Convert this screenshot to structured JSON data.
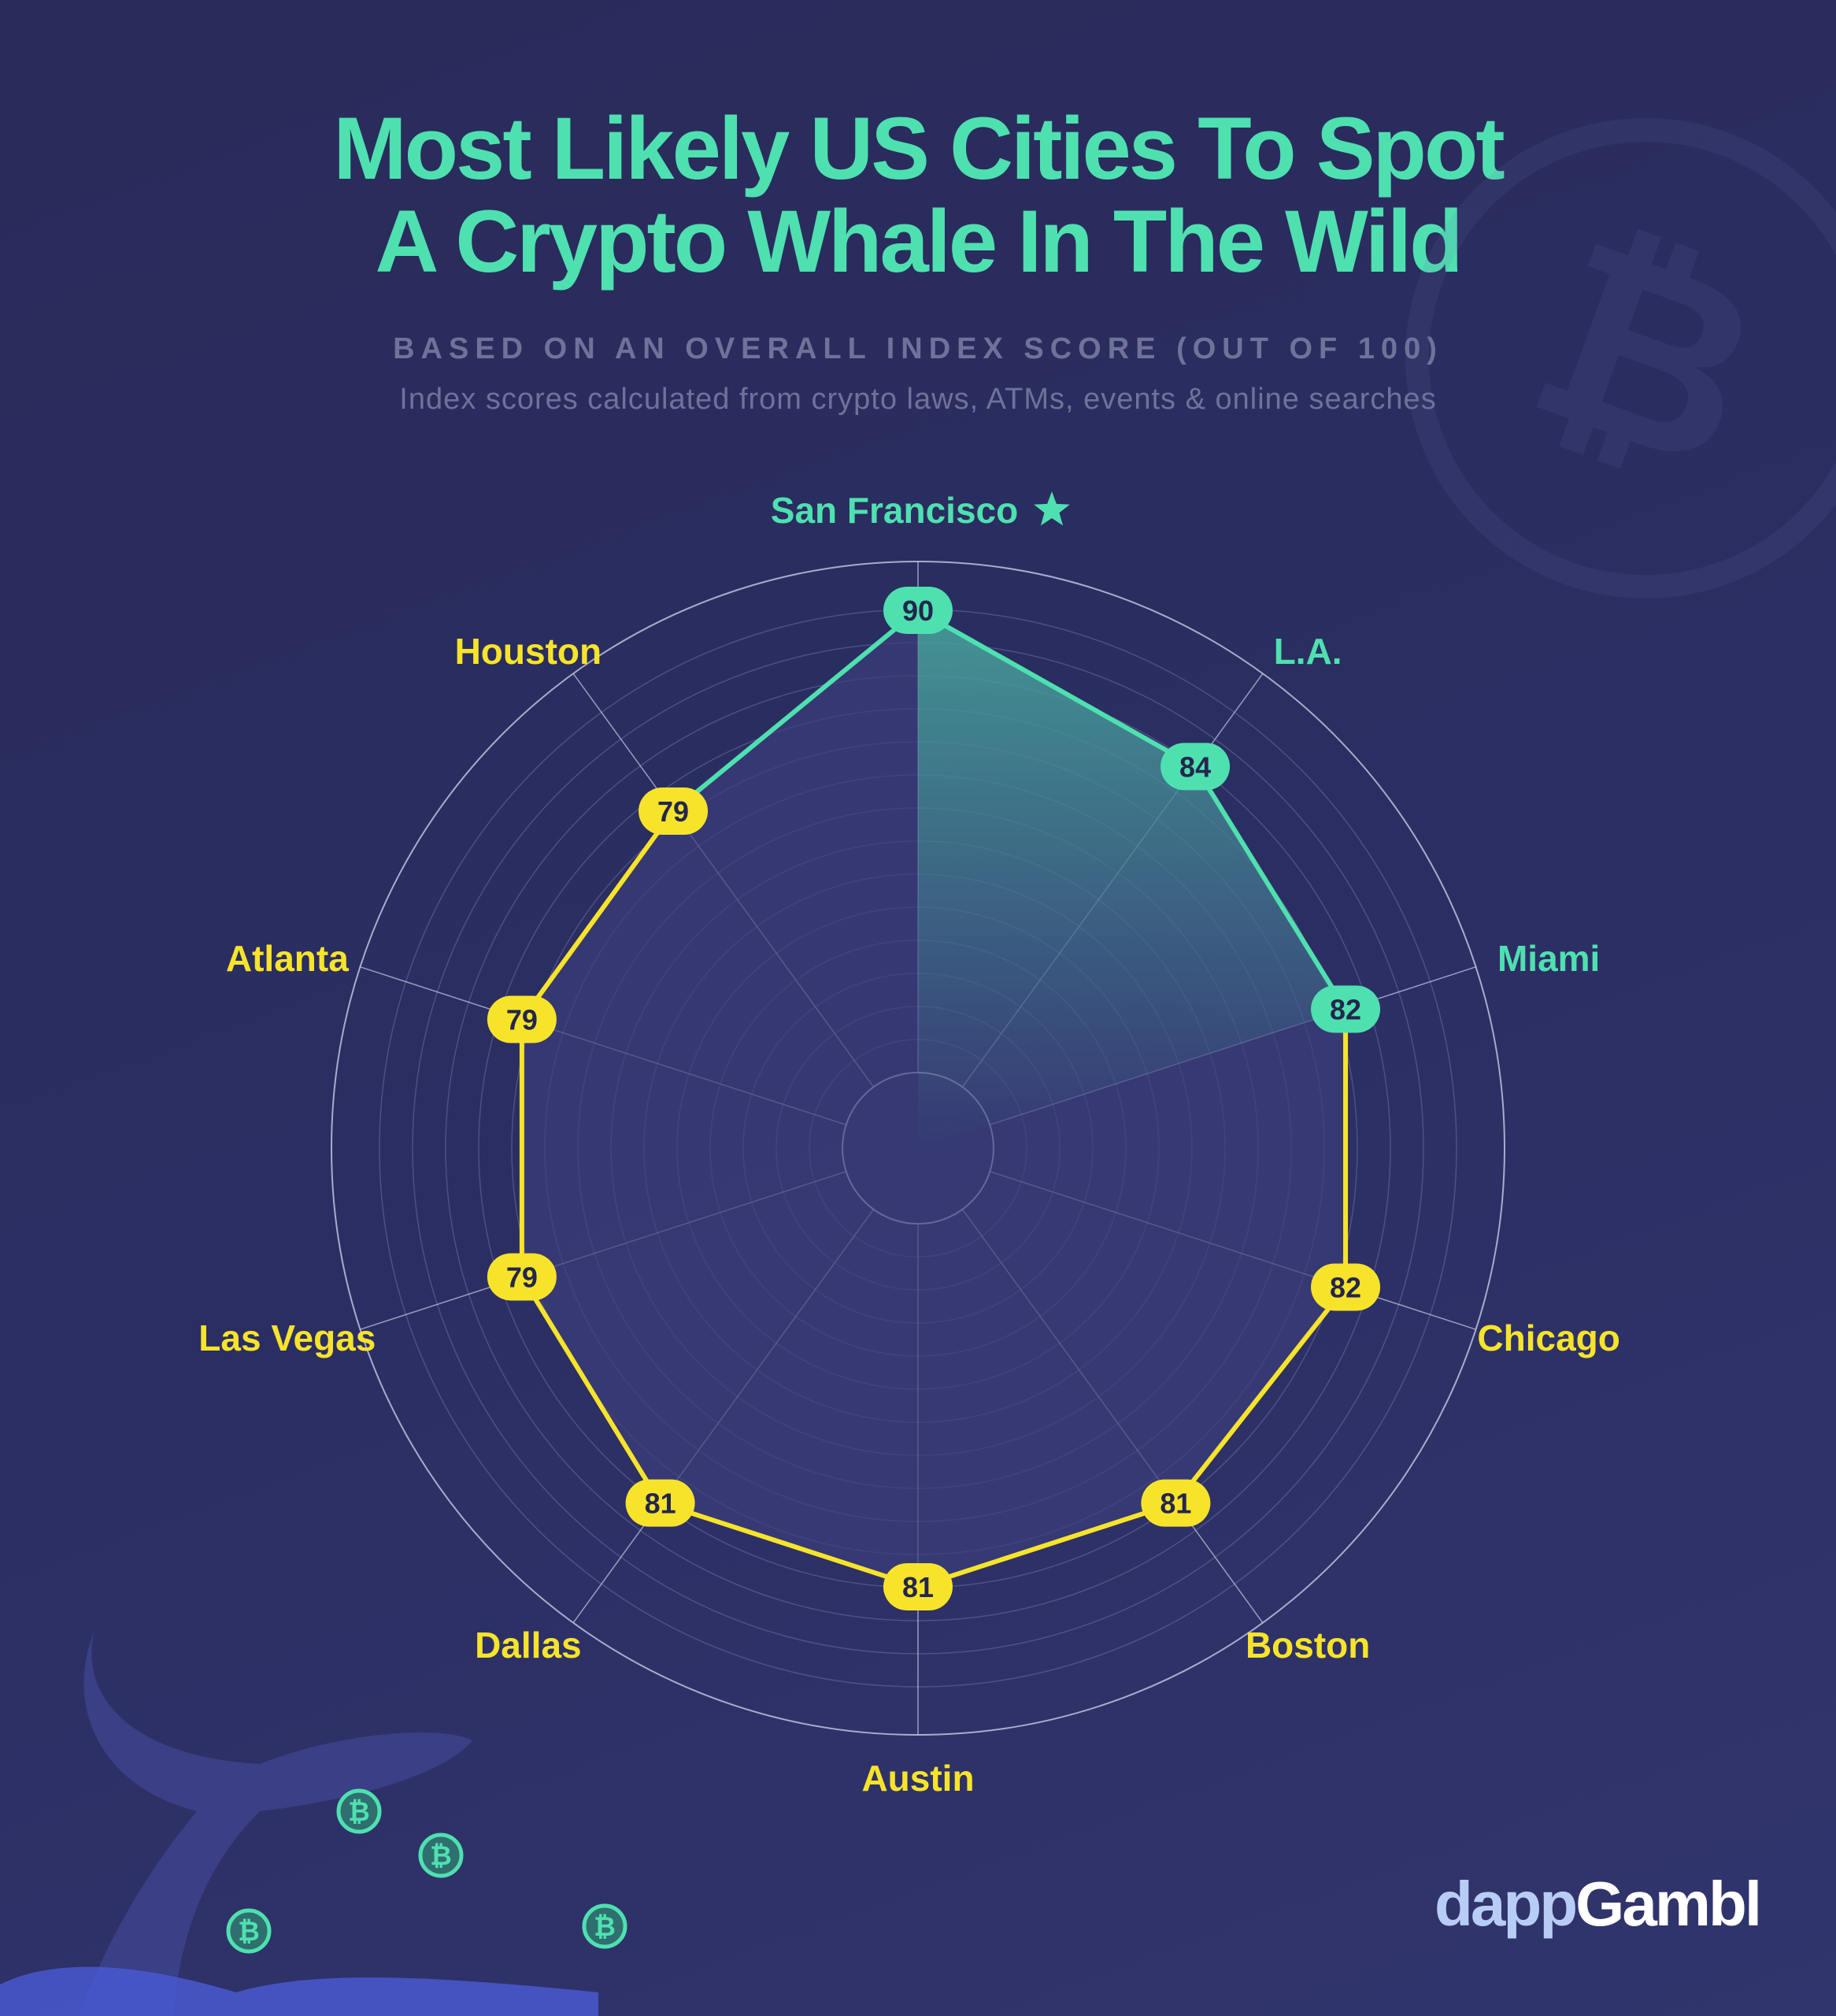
{
  "title_lines": [
    "Most Likely US Cities To Spot",
    "A Crypto Whale In The Wild"
  ],
  "subtitle": "BASED ON AN OVERALL INDEX SCORE (OUT OF 100)",
  "description": "Index scores calculated from crypto laws, ATMs, events & online searches",
  "logo": {
    "part1": "dapp",
    "part2": "Gambl"
  },
  "colors": {
    "top": "#4fe0b0",
    "other": "#f7e42a",
    "background": "#2a2c5c"
  },
  "chart_data": {
    "type": "radar",
    "title": "Most Likely US Cities To Spot A Crypto Whale In The Wild",
    "subtitle": "BASED ON AN OVERALL INDEX SCORE (OUT OF 100)",
    "categories": [
      "San Francisco",
      "L.A.",
      "Miami",
      "Chicago",
      "Boston",
      "Austin",
      "Dallas",
      "Las Vegas",
      "Atlanta",
      "Houston"
    ],
    "values": [
      90,
      84,
      82,
      82,
      81,
      81,
      81,
      79,
      79,
      79
    ],
    "highlighted": [
      "San Francisco",
      "L.A.",
      "Miami"
    ],
    "top_marker": "star-icon",
    "scale_max": 100
  }
}
